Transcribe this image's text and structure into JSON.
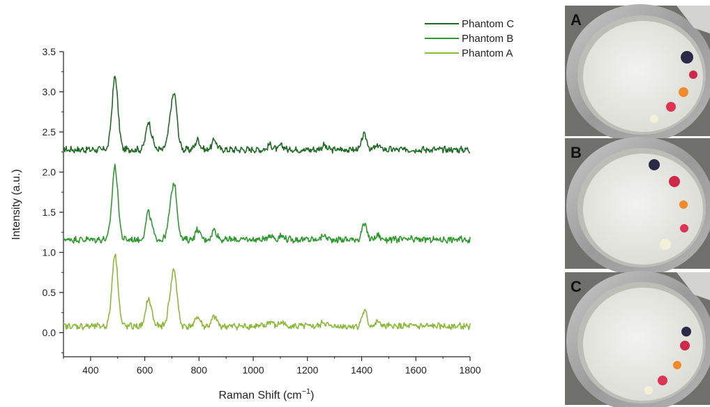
{
  "chart_data": {
    "type": "line",
    "xlabel_main": "Raman Shift (cm",
    "xlabel_sup": "−1",
    "xlabel_tail": ")",
    "ylabel": "Intensity (a.u.)",
    "xlim": [
      300,
      1800
    ],
    "ylim": [
      -0.3,
      3.5
    ],
    "x_ticks": [
      400,
      600,
      800,
      1000,
      1200,
      1400,
      1600,
      1800
    ],
    "y_ticks": [
      0.0,
      0.5,
      1.0,
      1.5,
      2.0,
      2.5,
      3.0,
      3.5
    ],
    "y_tick_labels": [
      "0.0",
      "0.5",
      "1.0",
      "1.5",
      "2.0",
      "2.5",
      "3.0",
      "3.5"
    ],
    "grid": false,
    "legend_position": "top-right",
    "peaks": [
      {
        "x": 490,
        "height": 0.9
      },
      {
        "x": 612,
        "height": 0.3
      },
      {
        "x": 625,
        "height": 0.1
      },
      {
        "x": 690,
        "height": 0.15
      },
      {
        "x": 708,
        "height": 0.68
      },
      {
        "x": 795,
        "height": 0.12
      },
      {
        "x": 857,
        "height": 0.12
      },
      {
        "x": 1063,
        "height": 0.06
      },
      {
        "x": 1105,
        "height": 0.05
      },
      {
        "x": 1260,
        "height": 0.05
      },
      {
        "x": 1410,
        "height": 0.19
      },
      {
        "x": 1460,
        "height": 0.05
      }
    ],
    "series": [
      {
        "name": "Phantom C",
        "color": "#1f6b25",
        "baseline": 2.28
      },
      {
        "name": "Phantom B",
        "color": "#2e9a2e",
        "baseline": 1.16
      },
      {
        "name": "Phantom A",
        "color": "#8db93a",
        "baseline": 0.08
      }
    ]
  },
  "photos": [
    {
      "letter": "A",
      "dots": [
        "#2a2a48",
        "#cc2a48",
        "#f08a2a",
        "#dd3355",
        "#f2f0d8"
      ]
    },
    {
      "letter": "B",
      "dots": [
        "#2a2a48",
        "#cc2a48",
        "#f08a2a",
        "#dd3355",
        "#f2f0d8"
      ]
    },
    {
      "letter": "C",
      "dots": [
        "#2a2a48",
        "#cc2a48",
        "#f08a2a",
        "#dd3355",
        "#f2f0d8"
      ]
    }
  ]
}
